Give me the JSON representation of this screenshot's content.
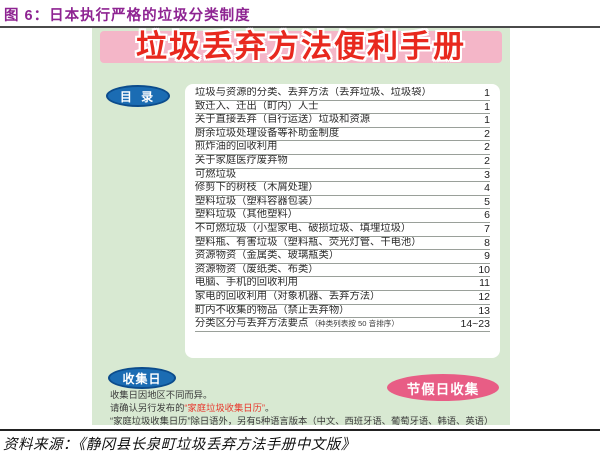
{
  "page": {
    "figure_title": "图 6：日本执行严格的垃圾分类制度",
    "source": "资料来源：《静冈县长泉町垃圾丢弃方法手册中文版》"
  },
  "poster": {
    "title": "垃圾丢弃方法便利手册",
    "toc": {
      "heading": "目 录",
      "items": [
        {
          "label": "垃圾与资源的分类、丢弃方法（丢弃垃圾、垃圾袋）",
          "page": "1"
        },
        {
          "label": "致迁入、迁出（町内）人士",
          "page": "1"
        },
        {
          "label": "关于直接丢弃（自行运送）垃圾和资源",
          "page": "1"
        },
        {
          "label": "厨余垃圾处理设备等补助金制度",
          "page": "2"
        },
        {
          "label": "煎炸油的回收利用",
          "page": "2"
        },
        {
          "label": "关于家庭医疗废弃物",
          "page": "2"
        },
        {
          "label": "可燃垃圾",
          "page": "3"
        },
        {
          "label": "修剪下的树枝（木屑处理）",
          "page": "4"
        },
        {
          "label": "塑料垃圾（塑料容器包装）",
          "page": "5"
        },
        {
          "label": "塑料垃圾（其他塑料）",
          "page": "6"
        },
        {
          "label": "不可燃垃圾（小型家电、破损垃圾、填埋垃圾）",
          "page": "7"
        },
        {
          "label": "塑料瓶、有害垃圾（塑料瓶、荧光灯管、干电池）",
          "page": "8"
        },
        {
          "label": "资源物资（金属类、玻璃瓶类）",
          "page": "9"
        },
        {
          "label": "资源物资（废纸类、布类）",
          "page": "10"
        },
        {
          "label": "电脑、手机的回收利用",
          "page": "11"
        },
        {
          "label": "家电的回收利用（对象机器、丢弃方法）",
          "page": "12"
        },
        {
          "label": "町内不收集的物品（禁止丢弃物）",
          "page": "13"
        },
        {
          "label": "分类区分与丢弃方法要点",
          "note": "（种类列表按 50 音排序）",
          "page": "14~23"
        }
      ]
    },
    "collection": {
      "heading": "收集日",
      "holiday_badge": "节假日收集",
      "line1": "收集日因地区不同而异。",
      "line2_prefix": "请确认另行发布的",
      "line2_highlight": "“家庭垃圾收集日历”",
      "line2_suffix": "。",
      "line3": "“家庭垃圾收集日历”除日语外，另有5种语言版本（中文、西班牙语、葡萄牙语、韩语、英语）"
    }
  },
  "colors": {
    "figure_title_purple": "#8e2492",
    "poster_bg": "#d8e9d2",
    "banner_bg": "#f4b6c8",
    "title_red": "#e8281e",
    "oval_blue": "#1b6cb3",
    "holiday_pink": "#e85d85",
    "highlight_red": "#e8382d"
  }
}
